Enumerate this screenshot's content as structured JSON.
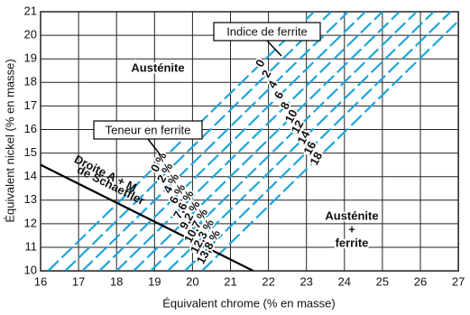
{
  "chart_data": {
    "type": "line",
    "xlabel": "Équivalent chrome (% en masse)",
    "ylabel": "Équivalent nickel (% en masse)",
    "xlim": [
      16,
      27
    ],
    "ylim": [
      10,
      21
    ],
    "xticks": [
      16,
      17,
      18,
      19,
      20,
      21,
      22,
      23,
      24,
      25,
      26,
      27
    ],
    "yticks": [
      10,
      11,
      12,
      13,
      14,
      15,
      16,
      17,
      18,
      19,
      20,
      21
    ],
    "grid": true,
    "color": "#1ea6dc",
    "ferrite_index_title": "Indice de ferrite",
    "ferrite_content_title": "Teneur en ferrite",
    "lines": [
      {
        "fn": 0,
        "pct": "0 %",
        "x": [
          16.2,
          23.2
        ],
        "y": [
          10,
          21
        ]
      },
      {
        "fn": 2,
        "pct": "2 %",
        "x": [
          16.65,
          23.65
        ],
        "y": [
          10,
          21
        ]
      },
      {
        "fn": 4,
        "pct": "4 %",
        "x": [
          17.1,
          24.1
        ],
        "y": [
          10,
          21
        ]
      },
      {
        "fn": 6,
        "pct": "6 %",
        "x": [
          17.55,
          24.55
        ],
        "y": [
          10,
          21
        ]
      },
      {
        "fn": 8,
        "pct": "7,6 %",
        "x": [
          18,
          25
        ],
        "y": [
          10,
          21
        ]
      },
      {
        "fn": 10,
        "pct": "9,2 %",
        "x": [
          18.45,
          25.45
        ],
        "y": [
          10,
          21
        ]
      },
      {
        "fn": 12,
        "pct": "10,7 %",
        "x": [
          18.9,
          25.9
        ],
        "y": [
          10,
          21
        ]
      },
      {
        "fn": 14,
        "pct": "12,3 %",
        "x": [
          19.35,
          26.35
        ],
        "y": [
          10,
          21
        ]
      },
      {
        "fn": 16,
        "pct": "13,8 %",
        "x": [
          19.8,
          26.8
        ],
        "y": [
          10,
          21
        ]
      },
      {
        "fn": 18,
        "x": [
          20.25,
          27.25
        ],
        "y": [
          10,
          21
        ]
      }
    ],
    "schaeffler_line": {
      "label_lines": [
        "Droite A + M",
        "de Schaeffler"
      ],
      "x": [
        16,
        21.6
      ],
      "y": [
        14.5,
        10
      ],
      "color": "#000000"
    },
    "regions": [
      {
        "lines": [
          "Austénite"
        ]
      },
      {
        "lines": [
          "Austénite",
          "+",
          "ferrite"
        ]
      }
    ]
  }
}
